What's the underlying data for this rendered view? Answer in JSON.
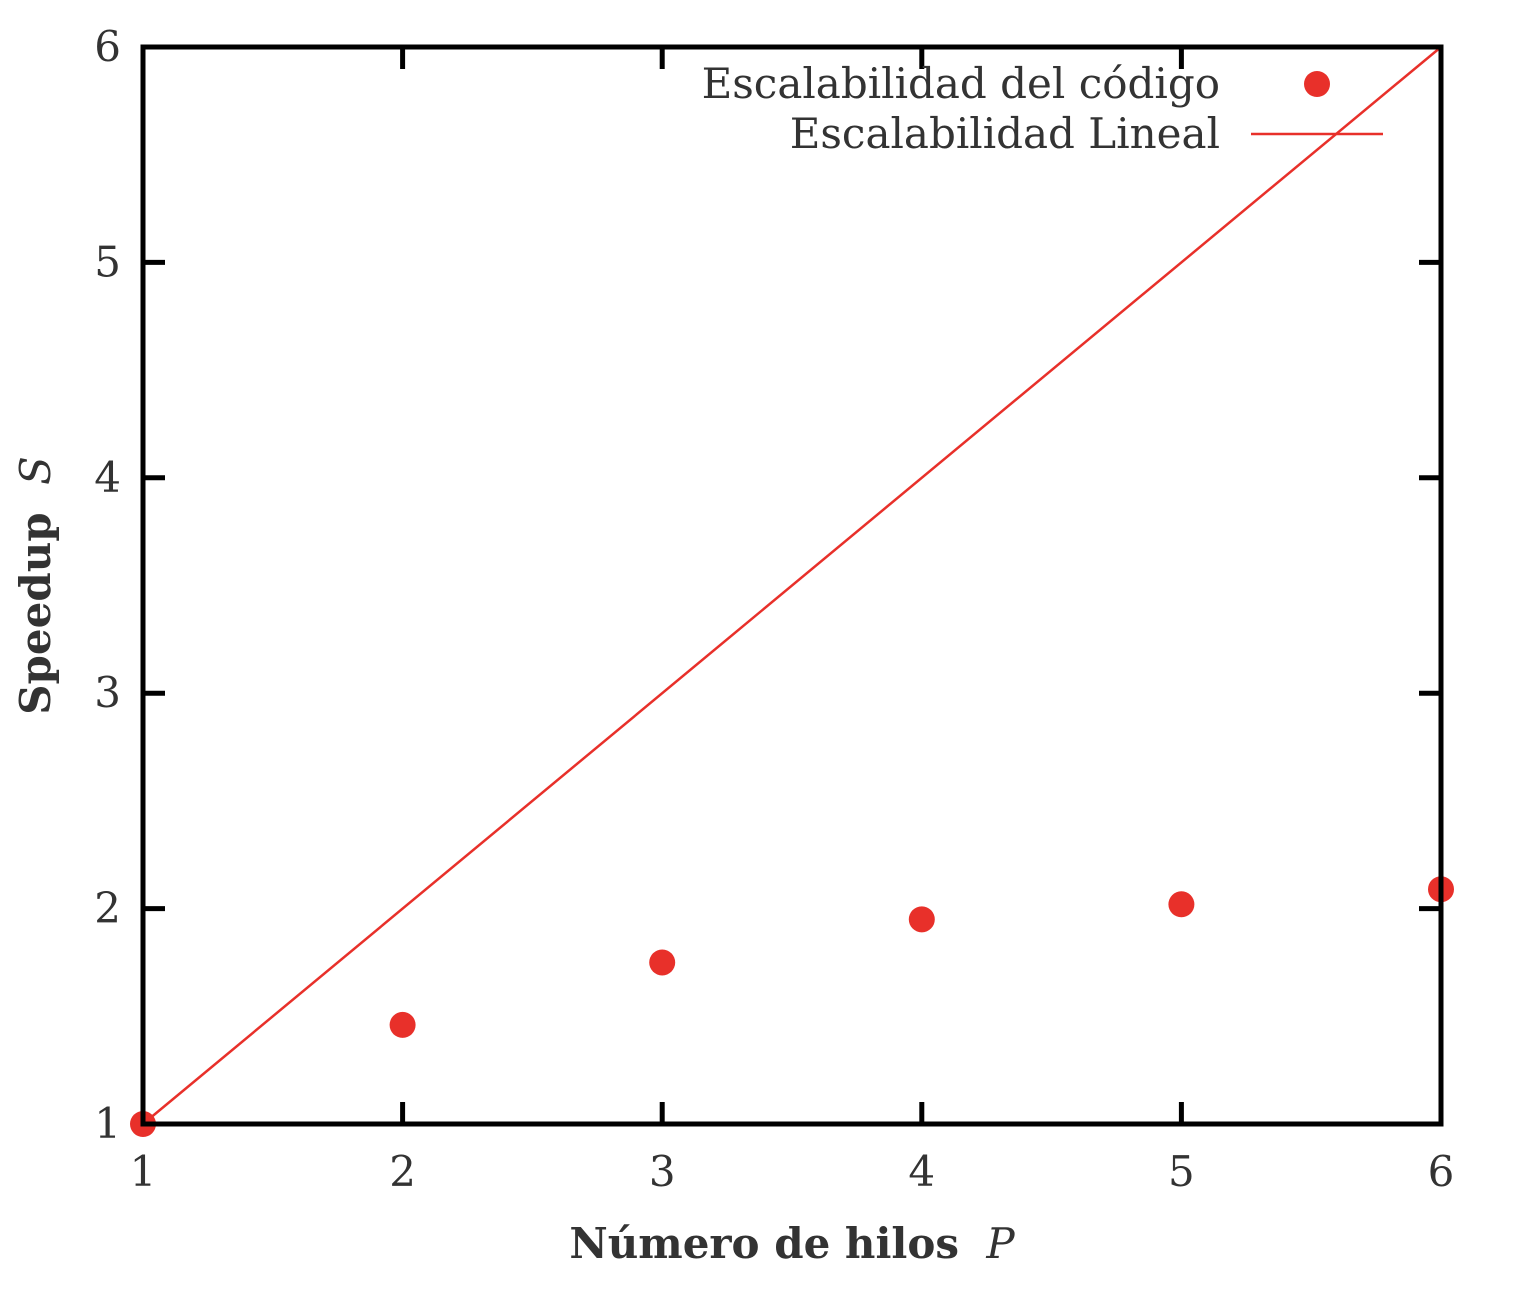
{
  "chart_data": {
    "type": "scatter",
    "xlabel": "Número de hilos",
    "xlabel_var": "P",
    "ylabel": "Speedup",
    "ylabel_var": "S",
    "xlim": [
      1,
      6
    ],
    "ylim": [
      1,
      6
    ],
    "xticks": [
      "1",
      "2",
      "3",
      "4",
      "5",
      "6"
    ],
    "yticks": [
      "1",
      "2",
      "3",
      "4",
      "5",
      "6"
    ],
    "grid": false,
    "legend_position": "top-right",
    "series": [
      {
        "name": "Escalabilidad del código",
        "kind": "points",
        "color": "#e8302a",
        "x": [
          1,
          2,
          3,
          4,
          5,
          6
        ],
        "y": [
          1.0,
          1.46,
          1.75,
          1.95,
          2.02,
          2.09
        ]
      },
      {
        "name": "Escalabilidad Lineal",
        "kind": "line",
        "color": "#e8302a",
        "x": [
          1,
          6
        ],
        "y": [
          1,
          6
        ]
      }
    ]
  }
}
